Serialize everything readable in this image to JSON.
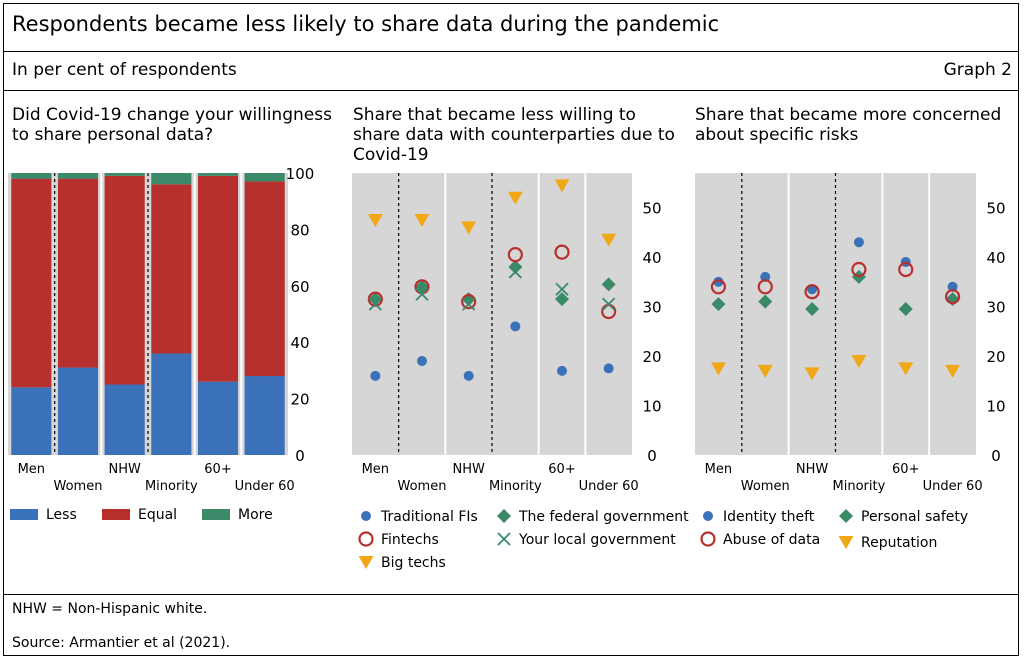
{
  "header": {
    "title": "Respondents became less likely to share data during the pandemic",
    "subtitle": "In per cent of respondents",
    "graph_number": "Graph 2"
  },
  "footer": {
    "note": "NHW = Non-Hispanic white.",
    "source": "Source: Armantier et al (2021)."
  },
  "colors": {
    "blue": "#3a71b8",
    "red": "#b8302e",
    "green": "#3a8a6a",
    "orange": "#f0a818",
    "panel_bg": "#d6d6d6"
  },
  "chart_data": [
    {
      "type": "bar",
      "stacked": true,
      "title": "Did Covid-19 change your willingness to share personal data?",
      "categories": [
        "Men",
        "Women",
        "NHW",
        "Minority",
        "60+",
        "Under 60"
      ],
      "series": [
        {
          "name": "Less",
          "values": [
            24,
            31,
            25,
            36,
            26,
            28
          ]
        },
        {
          "name": "Equal",
          "values": [
            74,
            67,
            74,
            60,
            73,
            69
          ]
        },
        {
          "name": "More",
          "values": [
            2,
            2,
            1,
            4,
            1,
            3
          ]
        }
      ],
      "ylim": [
        0,
        100
      ],
      "yticks": [
        0,
        20,
        40,
        60,
        80,
        100
      ],
      "separators_after": [
        1,
        3
      ],
      "legend_position": "bottom"
    },
    {
      "type": "scatter",
      "title": "Share that became less willing to share data with counterparties due to Covid-19",
      "categories": [
        "Men",
        "Women",
        "NHW",
        "Minority",
        "60+",
        "Under 60"
      ],
      "series": [
        {
          "name": "Traditional FIs",
          "marker": "circle-filled",
          "color": "blue",
          "values": [
            16,
            19,
            16,
            26,
            17,
            17.5
          ]
        },
        {
          "name": "The federal government",
          "marker": "diamond",
          "color": "green",
          "values": [
            31.5,
            34,
            31.5,
            38,
            31.5,
            34.5
          ]
        },
        {
          "name": "Fintechs",
          "marker": "circle-open",
          "color": "red",
          "values": [
            31.5,
            34,
            31,
            40.5,
            41,
            29
          ]
        },
        {
          "name": "Your local government",
          "marker": "cross",
          "color": "green",
          "values": [
            30.5,
            32.5,
            30.5,
            37,
            33.5,
            30.5
          ]
        },
        {
          "name": "Big techs",
          "marker": "triangle-down",
          "color": "orange",
          "values": [
            47.5,
            47.5,
            46,
            52,
            54.5,
            43.5
          ]
        }
      ],
      "ylim": [
        0,
        57
      ],
      "yticks": [
        0,
        10,
        20,
        30,
        40,
        50
      ],
      "separators_after": [
        1,
        3
      ],
      "legend_position": "bottom"
    },
    {
      "type": "scatter",
      "title": "Share that became more concerned about specific risks",
      "categories": [
        "Men",
        "Women",
        "NHW",
        "Minority",
        "60+",
        "Under 60"
      ],
      "series": [
        {
          "name": "Identity theft",
          "marker": "circle-filled",
          "color": "blue",
          "values": [
            35,
            36,
            33.5,
            43,
            39,
            34
          ]
        },
        {
          "name": "Personal safety",
          "marker": "diamond",
          "color": "green",
          "values": [
            30.5,
            31,
            29.5,
            36,
            29.5,
            31.5
          ]
        },
        {
          "name": "Abuse of data",
          "marker": "circle-open",
          "color": "red",
          "values": [
            34,
            34,
            33,
            37.5,
            37.5,
            32
          ]
        },
        {
          "name": "Reputation",
          "marker": "triangle-down",
          "color": "orange",
          "values": [
            17.5,
            17,
            16.5,
            19,
            17.5,
            17
          ]
        }
      ],
      "ylim": [
        0,
        57
      ],
      "yticks": [
        0,
        10,
        20,
        30,
        40,
        50
      ],
      "separators_after": [
        1,
        3
      ],
      "legend_position": "bottom"
    }
  ]
}
